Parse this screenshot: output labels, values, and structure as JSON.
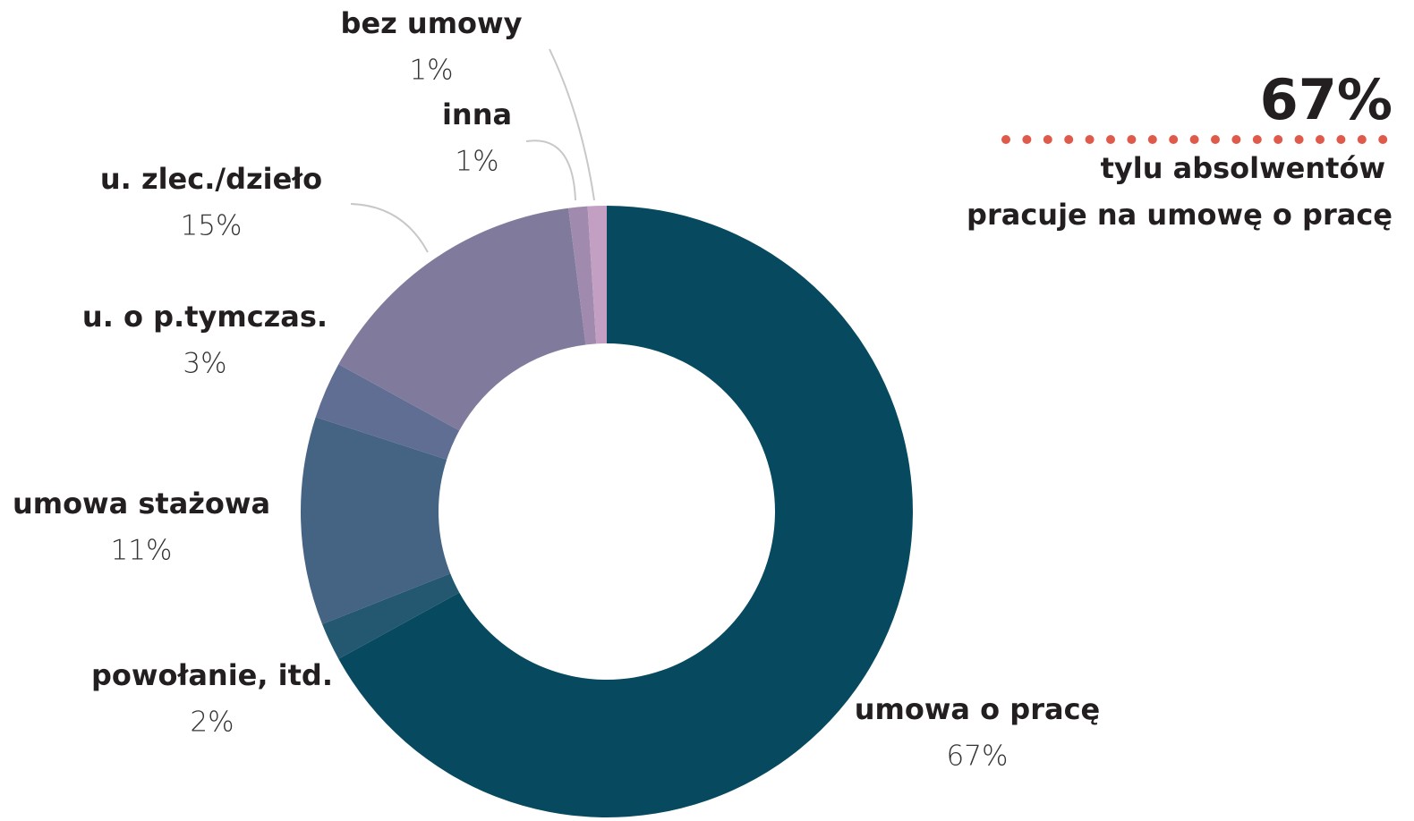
{
  "chart_data": {
    "type": "pie",
    "donut": true,
    "categories": [
      "umowa o pracę",
      "powołanie, itd.",
      "umowa stażowa",
      "u. o p.tymczas.",
      "u. zlec./dzieło",
      "inna",
      "bez umowy"
    ],
    "values": [
      67,
      2,
      11,
      3,
      15,
      1,
      1
    ],
    "value_labels": [
      "67%",
      "2%",
      "11%",
      "3%",
      "15%",
      "1%",
      "1%"
    ],
    "colors": [
      "#074a5f",
      "#245870",
      "#456382",
      "#5f6e92",
      "#807b9c",
      "#a08aad",
      "#c49fc4"
    ],
    "callout": {
      "headline": "67%",
      "text": [
        "tylu absolwentów",
        "pracuje na umowę o pracę"
      ],
      "color": "#e05a4b"
    }
  }
}
